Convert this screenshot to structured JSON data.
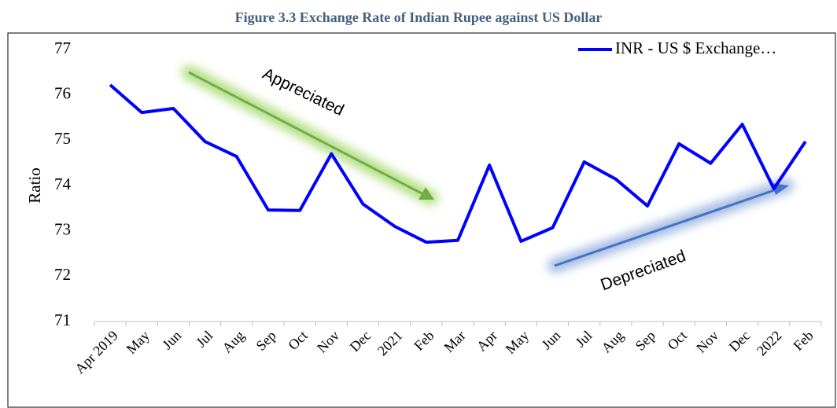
{
  "chart_data": {
    "type": "line",
    "title": "Figure 3.3 Exchange Rate of Indian Rupee against US Dollar",
    "y_label": "Ratio",
    "categories": [
      "Apr 2019",
      "May",
      "Jun",
      "Jul",
      "Aug",
      "Sep",
      "Oct",
      "Nov",
      "Dec",
      "2021",
      "Feb",
      "Mar",
      "Apr",
      "May",
      "Jun",
      "Jul",
      "Aug",
      "Sep",
      "Oct",
      "Nov",
      "Dec",
      "2022",
      "Feb"
    ],
    "series": [
      {
        "name": "INR - US $ Exchange…",
        "color": "#0000ff",
        "values": [
          76.22,
          75.61,
          75.7,
          74.97,
          74.64,
          73.46,
          73.45,
          74.7,
          73.59,
          73.1,
          72.75,
          72.79,
          74.45,
          72.77,
          73.07,
          74.52,
          74.14,
          73.55,
          74.92,
          74.49,
          75.35,
          73.93,
          74.97
        ]
      }
    ],
    "ylim": [
      71,
      77
    ],
    "yticks": [
      71,
      72,
      73,
      74,
      75,
      76,
      77
    ],
    "grid": false,
    "legend": "upper right",
    "annotations": [
      "Appreciated",
      "Depreciated"
    ]
  }
}
